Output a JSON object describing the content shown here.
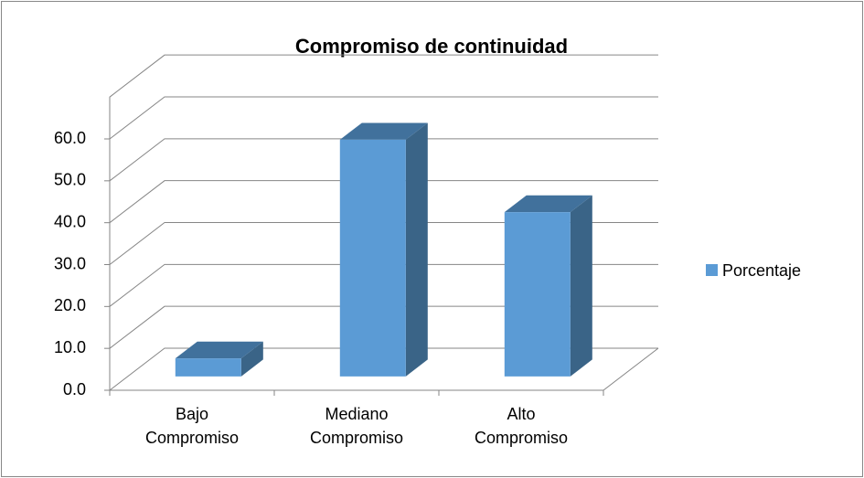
{
  "chart_data": {
    "type": "bar3d",
    "title": "Compromiso de continuidad",
    "categories": [
      "Bajo Compromiso",
      "Mediano Compromiso",
      "Alto Compromiso"
    ],
    "series": [
      {
        "name": "Porcentaje",
        "color": "#5b9bd5",
        "values": [
          4.3,
          56.5,
          39.2
        ]
      }
    ],
    "ylim": [
      0,
      70
    ],
    "yticks": [
      {
        "value": 0,
        "label": "0.0"
      },
      {
        "value": 10,
        "label": "10.0"
      },
      {
        "value": 20,
        "label": "20.0"
      },
      {
        "value": 30,
        "label": "30.0"
      },
      {
        "value": 40,
        "label": "40.0"
      },
      {
        "value": 50,
        "label": "50.0"
      },
      {
        "value": 60,
        "label": "60.0"
      }
    ],
    "grid": true,
    "legend": "right"
  }
}
